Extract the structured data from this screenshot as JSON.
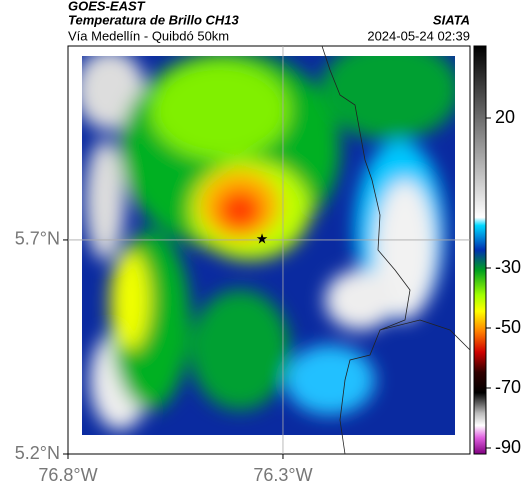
{
  "header": {
    "source": "GOES-EAST",
    "title": "Temperatura de Brillo CH13",
    "subtitle": "Vía Medellín - Quibdó 50km",
    "brand": "SIATA",
    "datetime": "2024-05-24 02:39"
  },
  "map": {
    "xlim": [
      -76.8,
      -75.865
    ],
    "ylim": [
      5.2,
      6.153
    ],
    "xticks": [
      {
        "value": -76.8,
        "label": "76.8°W"
      },
      {
        "value": -76.3,
        "label": "76.3°W"
      }
    ],
    "yticks": [
      {
        "value": 5.2,
        "label": "5.2°N"
      },
      {
        "value": 5.7,
        "label": "5.7°N"
      }
    ]
  },
  "colorbar": {
    "lim": [
      -92,
      44
    ],
    "ticks": [
      20,
      -30,
      -50,
      -70,
      -90
    ]
  }
}
